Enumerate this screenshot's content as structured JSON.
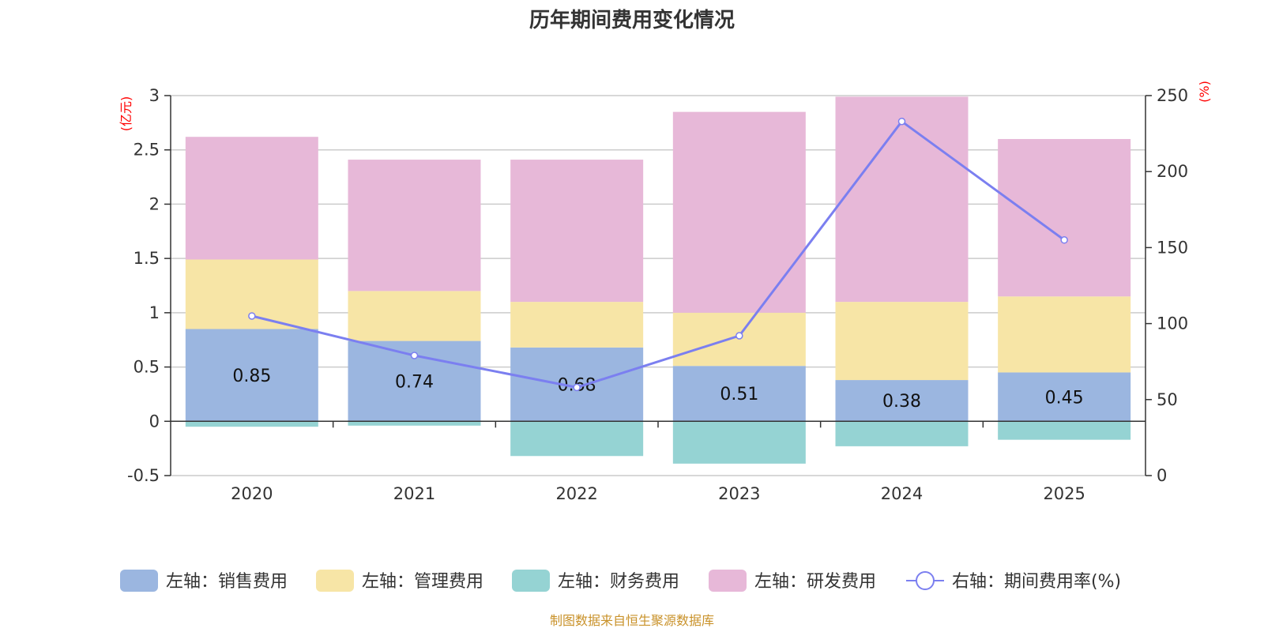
{
  "chart_data": {
    "type": "bar",
    "stacked": true,
    "title": "历年期间费用变化情况",
    "categories": [
      "2020",
      "2021",
      "2022",
      "2023",
      "2024",
      "2025"
    ],
    "left_axis": {
      "unit": "(亿元)",
      "ylim": [
        -0.5,
        3
      ],
      "ticks": [
        "-0.5",
        "0",
        "0.5",
        "1",
        "1.5",
        "2",
        "2.5",
        "3"
      ],
      "tick_values": [
        -0.5,
        0,
        0.5,
        1,
        1.5,
        2,
        2.5,
        3
      ]
    },
    "right_axis": {
      "unit": "(%)",
      "ylim": [
        0,
        250
      ],
      "ticks": [
        "0",
        "50",
        "100",
        "150",
        "200",
        "250"
      ],
      "tick_values": [
        0,
        50,
        100,
        150,
        200,
        250
      ]
    },
    "series": [
      {
        "name": "左轴：销售费用",
        "color": "#9bb6e0",
        "values": [
          0.85,
          0.74,
          0.68,
          0.51,
          0.38,
          0.45
        ],
        "labels": [
          "0.85",
          "0.74",
          "0.68",
          "0.51",
          "0.38",
          "0.45"
        ]
      },
      {
        "name": "左轴：管理费用",
        "color": "#f7e5a6",
        "values": [
          0.64,
          0.46,
          0.42,
          0.49,
          0.72,
          0.7
        ]
      },
      {
        "name": "左轴：财务费用",
        "color": "#95d3d3",
        "values": [
          -0.05,
          -0.04,
          -0.32,
          -0.39,
          -0.23,
          -0.17
        ]
      },
      {
        "name": "左轴：研发费用",
        "color": "#e7b8d8",
        "values": [
          1.13,
          1.21,
          1.31,
          1.85,
          1.89,
          1.45
        ]
      }
    ],
    "line": {
      "name": "右轴：期间费用率(%)",
      "color": "#7b7ff0",
      "values": [
        105,
        79,
        58,
        92,
        233,
        155
      ]
    }
  },
  "source": "制图数据来自恒生聚源数据库"
}
